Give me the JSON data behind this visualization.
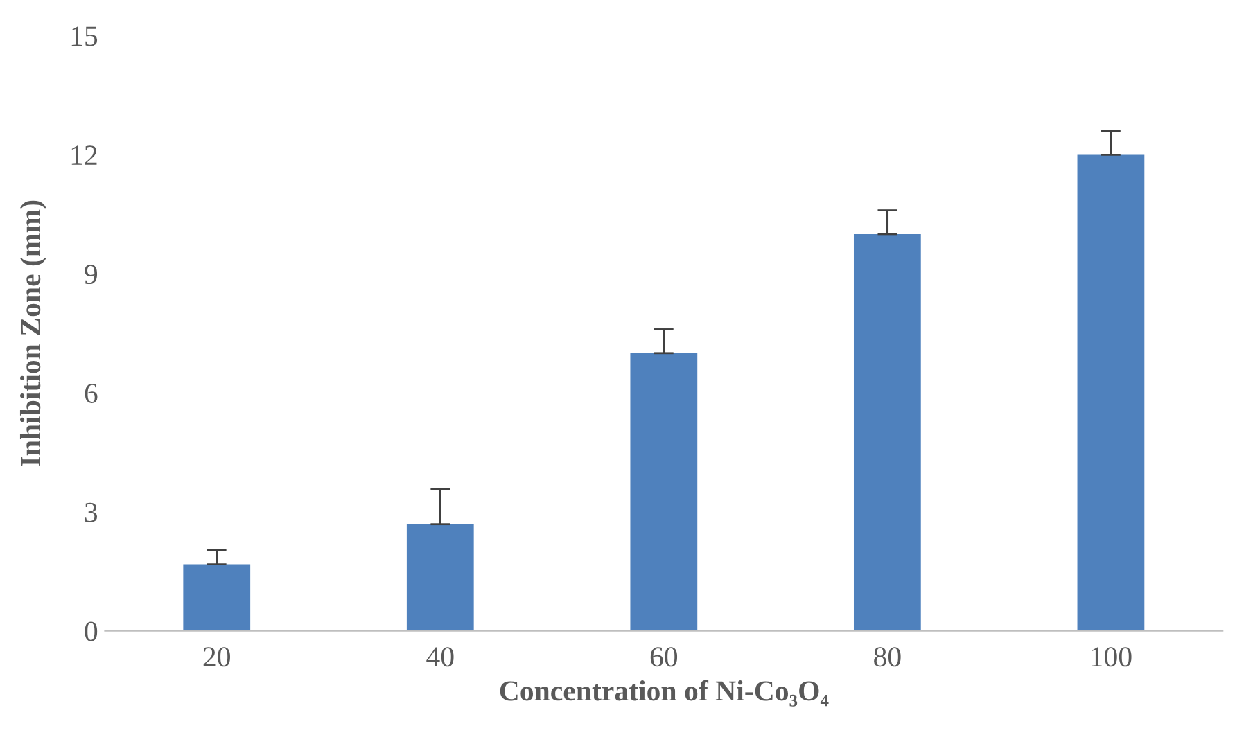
{
  "chart_data": {
    "type": "bar",
    "xlabel": "Concentration of Ni-Co₃O₄",
    "ylabel": "Inhibition Zone (mm)",
    "categories": [
      "20",
      "40",
      "60",
      "80",
      "100"
    ],
    "values": [
      1.68,
      2.69,
      7.0,
      10.0,
      12.0
    ],
    "errors": [
      [
        1.68,
        2.03
      ],
      [
        2.69,
        3.57
      ],
      [
        7.0,
        7.6
      ],
      [
        10.0,
        10.6
      ],
      [
        12.0,
        12.6
      ]
    ],
    "color": "#4f81bd",
    "ylim": [
      0,
      15
    ],
    "yticks": [
      0,
      3,
      6,
      9,
      12,
      15
    ],
    "grid": false,
    "legend": false
  }
}
